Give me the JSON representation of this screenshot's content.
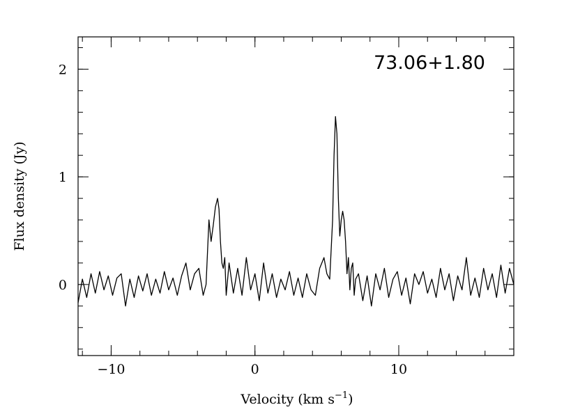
{
  "chart_data": {
    "type": "line",
    "title": "73.06+1.80",
    "xlabel": "Velocity (km s",
    "xlabel_sup": "−1",
    "xlabel_close": ")",
    "ylabel": "Flux density (Jy)",
    "xlim": [
      -12.3,
      18.0
    ],
    "ylim": [
      -0.66,
      2.3
    ],
    "x_ticks": [
      {
        "value": -10,
        "label": "−10"
      },
      {
        "value": 0,
        "label": "0"
      },
      {
        "value": 10,
        "label": "10"
      }
    ],
    "y_ticks": [
      {
        "value": 0,
        "label": "0"
      },
      {
        "value": 1,
        "label": "1"
      },
      {
        "value": 2,
        "label": "2"
      }
    ],
    "x_minor_step": 2,
    "y_minor_step": 0.2,
    "grid": false,
    "series": [
      {
        "x": [
          -12.3,
          -12.0,
          -11.7,
          -11.4,
          -11.1,
          -10.8,
          -10.5,
          -10.2,
          -9.9,
          -9.6,
          -9.3,
          -9.0,
          -8.7,
          -8.4,
          -8.1,
          -7.8,
          -7.5,
          -7.2,
          -6.9,
          -6.6,
          -6.3,
          -6.0,
          -5.7,
          -5.4,
          -5.1,
          -4.8,
          -4.5,
          -4.2,
          -3.9,
          -3.6,
          -3.4,
          -3.2,
          -3.05,
          -2.9,
          -2.75,
          -2.6,
          -2.5,
          -2.4,
          -2.3,
          -2.2,
          -2.1,
          -2.0,
          -1.8,
          -1.5,
          -1.2,
          -0.9,
          -0.6,
          -0.3,
          0.0,
          0.3,
          0.6,
          0.9,
          1.2,
          1.5,
          1.8,
          2.1,
          2.4,
          2.7,
          3.0,
          3.3,
          3.6,
          3.9,
          4.2,
          4.5,
          4.8,
          5.0,
          5.2,
          5.4,
          5.5,
          5.6,
          5.7,
          5.8,
          5.9,
          6.0,
          6.1,
          6.2,
          6.3,
          6.4,
          6.5,
          6.6,
          6.7,
          6.8,
          6.9,
          7.0,
          7.2,
          7.5,
          7.8,
          8.1,
          8.4,
          8.7,
          9.0,
          9.3,
          9.6,
          9.9,
          10.2,
          10.5,
          10.8,
          11.1,
          11.4,
          11.7,
          12.0,
          12.3,
          12.6,
          12.9,
          13.2,
          13.5,
          13.8,
          14.1,
          14.4,
          14.7,
          15.0,
          15.3,
          15.6,
          15.9,
          16.2,
          16.5,
          16.8,
          17.1,
          17.4,
          17.7,
          18.0
        ],
        "y": [
          -0.17,
          0.05,
          -0.12,
          0.1,
          -0.08,
          0.12,
          -0.05,
          0.08,
          -0.1,
          0.06,
          0.1,
          -0.2,
          0.05,
          -0.12,
          0.08,
          -0.06,
          0.1,
          -0.1,
          0.05,
          -0.08,
          0.12,
          -0.05,
          0.06,
          -0.1,
          0.08,
          0.2,
          -0.05,
          0.1,
          0.15,
          -0.1,
          0.0,
          0.6,
          0.4,
          0.55,
          0.72,
          0.8,
          0.7,
          0.4,
          0.2,
          0.15,
          0.25,
          -0.1,
          0.2,
          -0.08,
          0.15,
          -0.1,
          0.25,
          -0.05,
          0.1,
          -0.15,
          0.2,
          -0.08,
          0.1,
          -0.12,
          0.05,
          -0.05,
          0.12,
          -0.1,
          0.06,
          -0.12,
          0.1,
          -0.05,
          -0.1,
          0.15,
          0.25,
          0.1,
          0.05,
          0.6,
          1.2,
          1.56,
          1.4,
          0.8,
          0.45,
          0.6,
          0.68,
          0.6,
          0.4,
          0.1,
          0.25,
          -0.05,
          0.15,
          0.2,
          -0.1,
          0.05,
          0.1,
          -0.15,
          0.08,
          -0.2,
          0.1,
          -0.05,
          0.15,
          -0.12,
          0.05,
          0.12,
          -0.1,
          0.06,
          -0.18,
          0.1,
          0.0,
          0.12,
          -0.08,
          0.05,
          -0.12,
          0.15,
          -0.05,
          0.1,
          -0.15,
          0.08,
          -0.05,
          0.25,
          -0.1,
          0.06,
          -0.12,
          0.15,
          -0.05,
          0.1,
          -0.12,
          0.18,
          -0.08,
          0.15,
          0.0
        ]
      }
    ]
  }
}
